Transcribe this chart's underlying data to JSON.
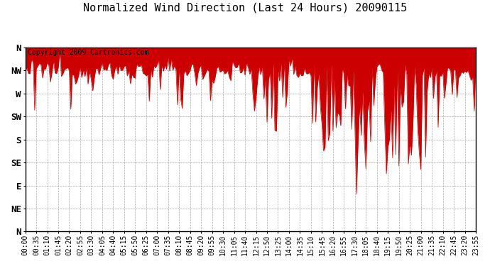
{
  "title": "Normalized Wind Direction (Last 24 Hours) 20090115",
  "copyright_text": "Copyright 2009 Cartronics.com",
  "line_color": "#cc0000",
  "background_color": "#ffffff",
  "grid_color": "#aaaaaa",
  "ytick_labels": [
    "N",
    "NW",
    "W",
    "SW",
    "S",
    "SE",
    "E",
    "NE",
    "N"
  ],
  "ytick_values": [
    9,
    8,
    7,
    6,
    5,
    4,
    3,
    2,
    1
  ],
  "ylim": [
    1,
    9
  ],
  "title_fontsize": 11,
  "annotation_fontsize": 7,
  "tick_fontsize": 7,
  "ylabel_fontsize": 9,
  "num_points": 288,
  "seed": 12345
}
